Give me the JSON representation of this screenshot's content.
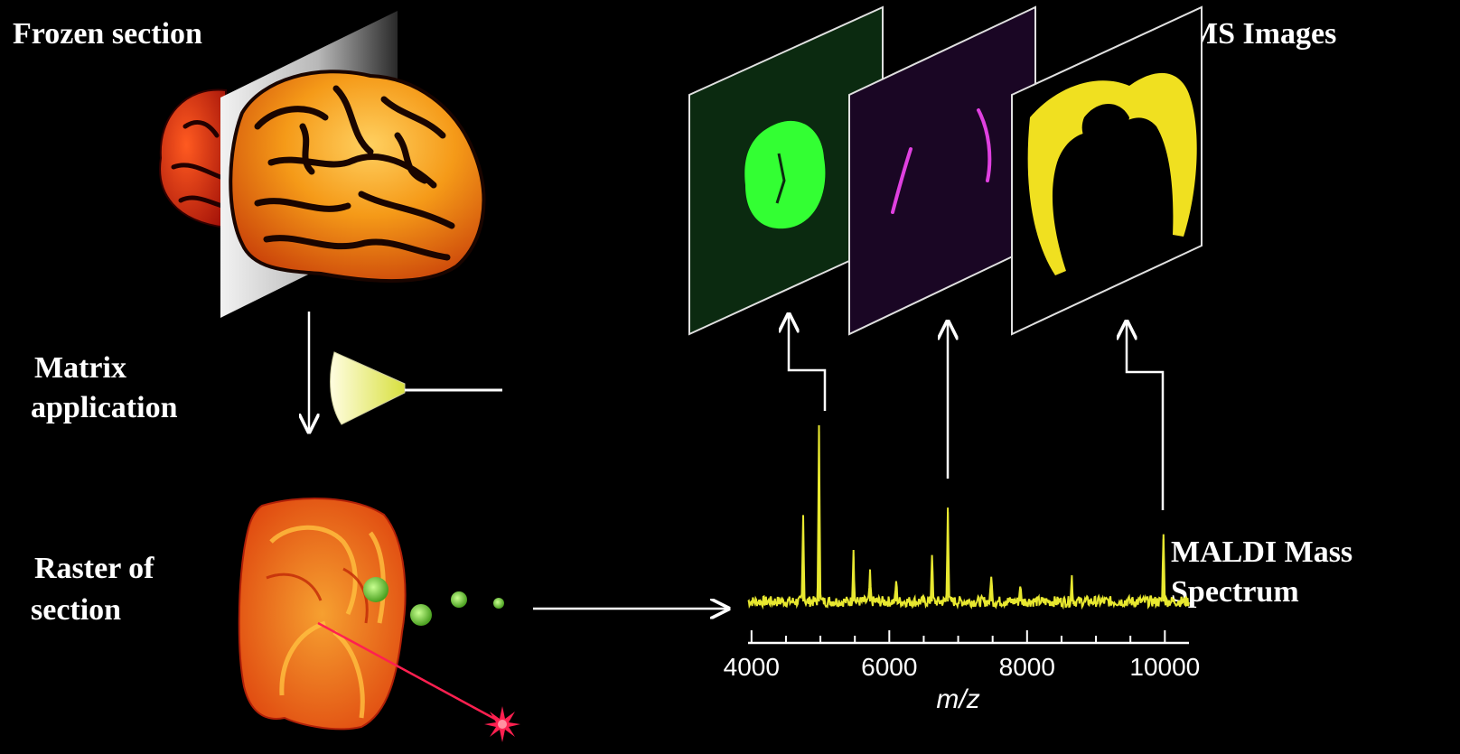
{
  "labels": {
    "frozen_section": "Frozen section",
    "ms_images": "MS Images",
    "matrix_line1": "Matrix",
    "matrix_line2": "application",
    "raster_line1": "Raster of",
    "raster_line2": "section",
    "maldi_line1": "MALDI  Mass",
    "maldi_line2": "Spectrum"
  },
  "colors": {
    "background": "#000000",
    "spectrum": "#e8e830",
    "image_green": "#33ff33",
    "image_magenta": "#e040e0",
    "image_yellow": "#f0e020",
    "brain_orange": "#f08a10",
    "brain_red": "#d42010",
    "laser": "#ff2050",
    "droplet": "#88e040"
  },
  "chart_data": {
    "type": "line",
    "title": "",
    "xlabel": "m/z",
    "ylabel": "",
    "xlim": [
      3950,
      10350
    ],
    "ylim": [
      0,
      100
    ],
    "x_ticks": [
      4000,
      6000,
      8000,
      10000
    ],
    "x_tick_labels": [
      "4000",
      "6000",
      "8000",
      "10000"
    ],
    "baseline": 5,
    "peaks": [
      {
        "x": 4750,
        "y": 48
      },
      {
        "x": 4980,
        "y": 100
      },
      {
        "x": 5480,
        "y": 30
      },
      {
        "x": 5720,
        "y": 15
      },
      {
        "x": 6100,
        "y": 12
      },
      {
        "x": 6620,
        "y": 28
      },
      {
        "x": 6850,
        "y": 55
      },
      {
        "x": 7480,
        "y": 16
      },
      {
        "x": 7900,
        "y": 10
      },
      {
        "x": 8650,
        "y": 14
      },
      {
        "x": 9980,
        "y": 40
      }
    ],
    "imaged_peaks": [
      {
        "x": 4980,
        "image": "green"
      },
      {
        "x": 6850,
        "image": "magenta"
      },
      {
        "x": 9980,
        "image": "yellow"
      }
    ]
  }
}
